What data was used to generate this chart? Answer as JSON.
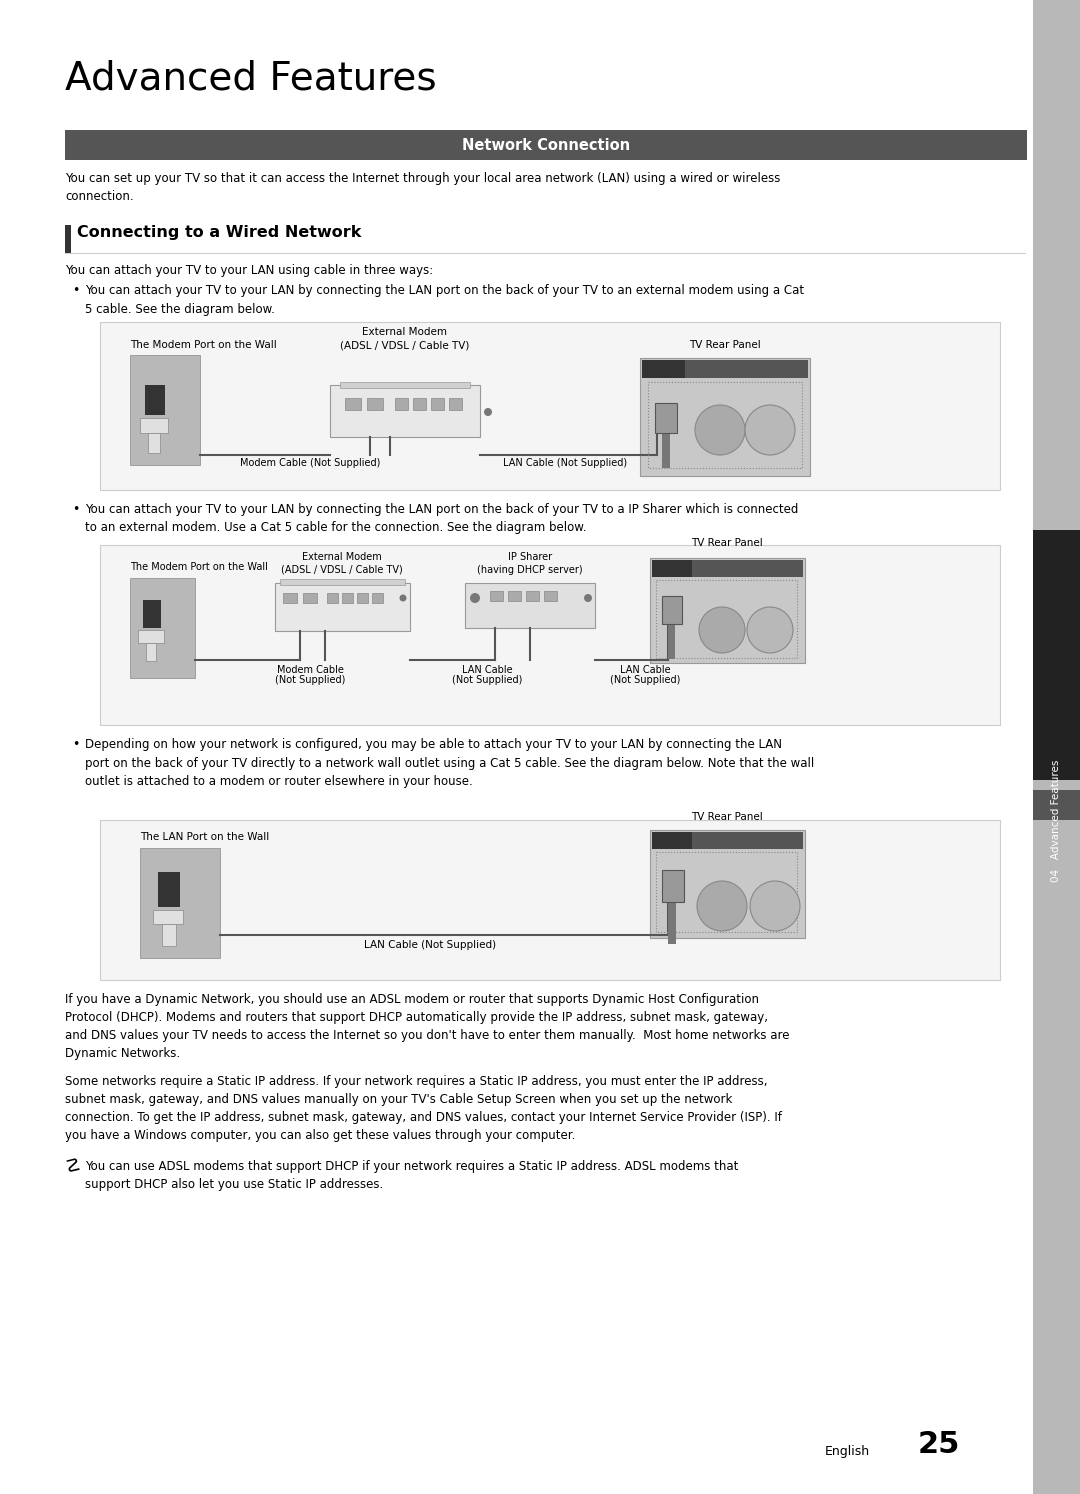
{
  "title": "Advanced Features",
  "section_header": "Network Connection",
  "section_header_bg": "#555555",
  "subsection_title": "Connecting to a Wired Network",
  "intro_text": "You can set up your TV so that it can access the Internet through your local area network (LAN) using a wired or wireless\nconnection.",
  "ways_text": "You can attach your TV to your LAN using cable in three ways:",
  "bullet1_text": "You can attach your TV to your LAN by connecting the LAN port on the back of your TV to an external modem using a Cat\n5 cable. See the diagram below.",
  "bullet2_text": "You can attach your TV to your LAN by connecting the LAN port on the back of your TV to a IP Sharer which is connected\nto an external modem. Use a Cat 5 cable for the connection. See the diagram below.",
  "bullet3_text": "Depending on how your network is configured, you may be able to attach your TV to your LAN by connecting the LAN\nport on the back of your TV directly to a network wall outlet using a Cat 5 cable. See the diagram below. Note that the wall\noutlet is attached to a modem or router elsewhere in your house.",
  "para1_text": "If you have a Dynamic Network, you should use an ADSL modem or router that supports Dynamic Host Configuration\nProtocol (DHCP). Modems and routers that support DHCP automatically provide the IP address, subnet mask, gateway,\nand DNS values your TV needs to access the Internet so you don't have to enter them manually.  Most home networks are\nDynamic Networks.",
  "para2_text": "Some networks require a Static IP address. If your network requires a Static IP address, you must enter the IP address,\nsubnet mask, gateway, and DNS values manually on your TV's Cable Setup Screen when you set up the network\nconnection. To get the IP address, subnet mask, gateway, and DNS values, contact your Internet Service Provider (ISP). If\nyou have a Windows computer, you can also get these values through your computer.",
  "note_text": "You can use ADSL modems that support DHCP if your network requires a Static IP address. ADSL modems that\nsupport DHCP also let you use Static IP addresses.",
  "page_number": "25",
  "english_text": "English",
  "sidebar_text": "04   Advanced Features",
  "bg_color": "#ffffff",
  "sidebar_light": "#b0b0b0",
  "sidebar_dark": "#222222"
}
